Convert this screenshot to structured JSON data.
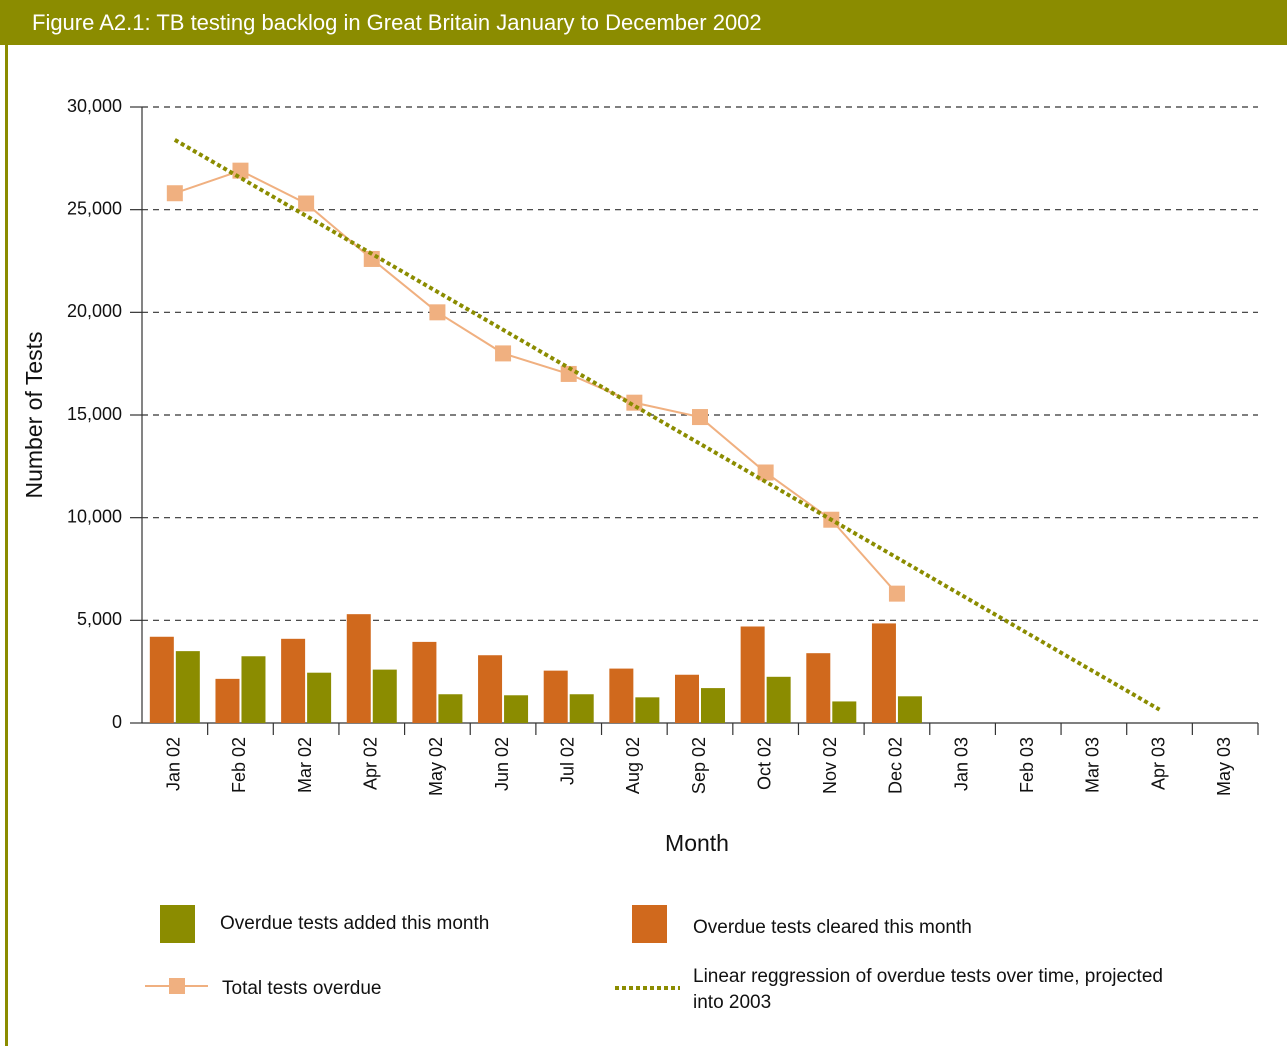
{
  "chart_data": {
    "type": "bar",
    "title": "Figure A2.1: TB testing backlog in Great Britain January to December 2002",
    "x_label": "Month",
    "y_label": "Number of Tests",
    "categories": [
      "Jan 02",
      "Feb 02",
      "Mar 02",
      "Apr 02",
      "May 02",
      "Jun 02",
      "Jul 02",
      "Aug 02",
      "Sep 02",
      "Oct 02",
      "Nov 02",
      "Dec 02",
      "Jan 03",
      "Feb 03",
      "Mar 03",
      "Apr 03",
      "May 03"
    ],
    "series": [
      {
        "name": "Overdue tests added this month",
        "type": "bar",
        "color": "#8b8c00",
        "values": [
          3500,
          3250,
          2450,
          2600,
          1400,
          1350,
          1400,
          1250,
          1700,
          2250,
          1050,
          1300,
          null,
          null,
          null,
          null,
          null
        ]
      },
      {
        "name": "Overdue tests cleared this month",
        "type": "bar",
        "color": "#d0691d",
        "values": [
          4200,
          2150,
          4100,
          5300,
          3950,
          3300,
          2550,
          2650,
          2350,
          4700,
          3400,
          4850,
          null,
          null,
          null,
          null,
          null
        ]
      },
      {
        "name": "Total tests overdue",
        "type": "line",
        "color": "#f0b080",
        "marker": "square",
        "values": [
          25800,
          26900,
          25300,
          22600,
          20000,
          18000,
          17000,
          15600,
          14900,
          12200,
          9900,
          6300,
          null,
          null,
          null,
          null,
          null
        ]
      },
      {
        "name": "Linear reggression of overdue tests over time, projected into 2003",
        "type": "line",
        "color": "#8b8c00",
        "style": "dotted",
        "values": [
          28400,
          26550,
          24700,
          22850,
          21000,
          19150,
          17300,
          15450,
          13600,
          11750,
          9900,
          8050,
          6200,
          4350,
          2500,
          650,
          null
        ]
      }
    ],
    "ylim": [
      0,
      30000
    ],
    "yticks": [
      0,
      {
        "value": 5000,
        "label": "5,000"
      },
      {
        "value": 10000,
        "label": "10,000"
      },
      {
        "value": 15000,
        "label": "15,000"
      },
      {
        "value": 20000,
        "label": "20,000"
      },
      {
        "value": 25000,
        "label": "25,000"
      },
      {
        "value": 30000,
        "label": "30,000"
      }
    ],
    "grid": true
  }
}
